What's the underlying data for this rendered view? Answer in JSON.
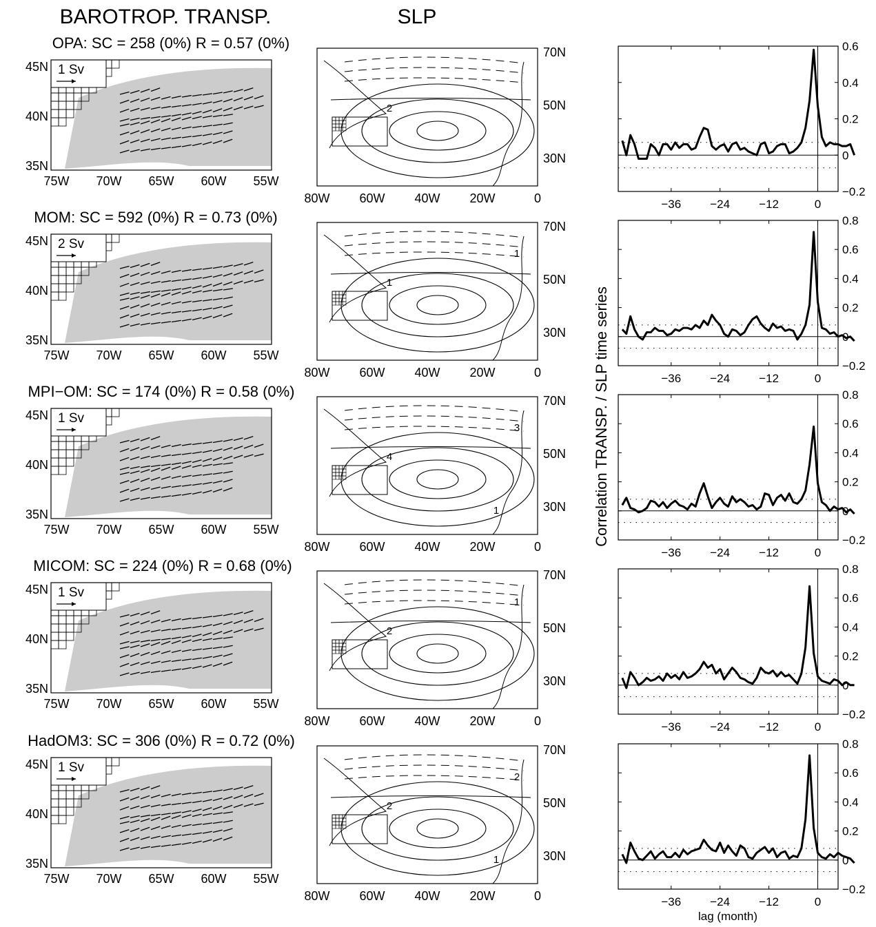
{
  "headers": {
    "left": "BAROTROP. TRANSP.",
    "middle": "SLP"
  },
  "right_axis": {
    "ylabel": "Correlation TRANSP. / SLP time series",
    "xlabel": "lag (month)"
  },
  "colors": {
    "shade": "#cccccc",
    "line": "#000000"
  },
  "map_axes": {
    "left_x_ticks": [
      "75W",
      "70W",
      "65W",
      "60W",
      "55W"
    ],
    "left_y_ticks": [
      "45N",
      "40N",
      "35N"
    ],
    "slp_x_ticks": [
      "80W",
      "60W",
      "40W",
      "20W",
      "0"
    ],
    "slp_y_ticks": [
      "70N",
      "50N",
      "30N"
    ]
  },
  "chart_data": [
    {
      "type": "line",
      "model": "OPA",
      "sc": "258",
      "sc_sig": "(0%)",
      "r": "0.57",
      "r_sig": "(0%)",
      "vector_scale": "1 Sv",
      "slp_contour_labels": [
        "2"
      ],
      "xlabel": "",
      "ylabel": "Correlation TRANSP. / SLP time series",
      "xlim": [
        -49,
        5
      ],
      "ylim": [
        -0.2,
        0.6
      ],
      "x_ticks": [
        -36,
        -24,
        -12,
        0
      ],
      "y_ticks": [
        -0.2,
        0,
        0.2,
        0.4,
        0.6
      ],
      "y_tick_labels": [
        "−0.2",
        "0",
        "0.2",
        "0.4",
        "0.6"
      ],
      "x_tick_labels": [
        "−36",
        "−24",
        "−12",
        "0"
      ],
      "significance": 0.07,
      "series": [
        {
          "x": [
            -48,
            -47,
            -46,
            -45,
            -44,
            -43,
            -42,
            -41,
            -40,
            -39,
            -38,
            -37,
            -36,
            -35,
            -34,
            -33,
            -32,
            -31,
            -30,
            -29,
            -28,
            -27,
            -26,
            -25,
            -24,
            -23,
            -22,
            -21,
            -20,
            -19,
            -18,
            -17,
            -16,
            -15,
            -14,
            -13,
            -12,
            -11,
            -10,
            -9,
            -8,
            -7,
            -6,
            -5,
            -4,
            -3,
            -2,
            -1,
            0,
            1,
            2,
            3,
            4,
            5,
            6,
            7,
            8,
            9
          ],
          "y": [
            0.08,
            0.0,
            0.11,
            0.06,
            -0.02,
            -0.02,
            -0.02,
            0.06,
            0.04,
            0.0,
            0.06,
            0.06,
            0.03,
            0.07,
            0.04,
            0.06,
            0.06,
            0.03,
            0.04,
            0.1,
            0.15,
            0.14,
            0.05,
            0.03,
            0.05,
            0.06,
            0.02,
            0.06,
            0.07,
            0.03,
            0.04,
            0.02,
            0.01,
            0.0,
            0.06,
            0.07,
            0.01,
            0.02,
            0.05,
            0.06,
            0.06,
            0.01,
            0.02,
            0.04,
            0.07,
            0.15,
            0.3,
            0.58,
            0.27,
            0.1,
            0.05,
            0.07,
            0.06,
            0.06,
            0.05,
            0.05,
            0.06,
            0.0
          ]
        }
      ]
    },
    {
      "type": "line",
      "model": "MOM",
      "sc": "592",
      "sc_sig": "(0%)",
      "r": "0.73",
      "r_sig": "(0%)",
      "vector_scale": "2 Sv",
      "slp_contour_labels": [
        "1",
        "1"
      ],
      "xlabel": "",
      "ylabel": "Correlation TRANSP. / SLP time series",
      "xlim": [
        -49,
        5
      ],
      "ylim": [
        -0.2,
        0.8
      ],
      "x_ticks": [
        -36,
        -24,
        -12,
        0
      ],
      "y_ticks": [
        -0.2,
        0,
        0.2,
        0.4,
        0.6,
        0.8
      ],
      "y_tick_labels": [
        "−0.2",
        "0",
        "0.2",
        "0.4",
        "0.6",
        "0.8"
      ],
      "x_tick_labels": [
        "−36",
        "−24",
        "−12",
        "0"
      ],
      "significance": 0.08,
      "series": [
        {
          "x": [
            -48,
            -47,
            -46,
            -45,
            -44,
            -43,
            -42,
            -41,
            -40,
            -39,
            -38,
            -37,
            -36,
            -35,
            -34,
            -33,
            -32,
            -31,
            -30,
            -29,
            -28,
            -27,
            -26,
            -25,
            -24,
            -23,
            -22,
            -21,
            -20,
            -19,
            -18,
            -17,
            -16,
            -15,
            -14,
            -13,
            -12,
            -11,
            -10,
            -9,
            -8,
            -7,
            -6,
            -5,
            -4,
            -3,
            -2,
            -1,
            0,
            1,
            2,
            3,
            4,
            5,
            6,
            7,
            8,
            9
          ],
          "y": [
            0.05,
            0.02,
            0.14,
            0.05,
            0.0,
            -0.02,
            0.03,
            0.03,
            0.06,
            0.04,
            0.04,
            0.01,
            0.02,
            0.05,
            0.04,
            0.06,
            0.06,
            0.05,
            0.08,
            0.06,
            0.11,
            0.08,
            0.15,
            0.11,
            0.08,
            0.02,
            0.0,
            0.05,
            0.04,
            0.01,
            0.03,
            0.08,
            0.12,
            0.14,
            0.09,
            0.06,
            0.04,
            0.09,
            0.06,
            0.07,
            0.04,
            0.05,
            0.04,
            -0.02,
            0.02,
            0.08,
            0.22,
            0.72,
            0.24,
            0.06,
            0.05,
            0.02,
            0.03,
            0.0,
            0.01,
            -0.01,
            0.0,
            -0.03
          ]
        }
      ]
    },
    {
      "type": "line",
      "model": "MPI−OM",
      "sc": "174",
      "sc_sig": "(0%)",
      "r": "0.58",
      "r_sig": "(0%)",
      "vector_scale": "1 Sv",
      "slp_contour_labels": [
        "4",
        "3",
        "1"
      ],
      "xlabel": "",
      "ylabel": "Correlation TRANSP. / SLP time series",
      "xlim": [
        -49,
        5
      ],
      "ylim": [
        -0.2,
        0.8
      ],
      "x_ticks": [
        -36,
        -24,
        -12,
        0
      ],
      "y_ticks": [
        -0.2,
        0,
        0.2,
        0.4,
        0.6,
        0.8
      ],
      "y_tick_labels": [
        "−0.2",
        "0",
        "0.2",
        "0.4",
        "0.6",
        "0.8"
      ],
      "x_tick_labels": [
        "−36",
        "−24",
        "−12",
        "0"
      ],
      "significance": 0.08,
      "series": [
        {
          "x": [
            -48,
            -47,
            -46,
            -45,
            -44,
            -43,
            -42,
            -41,
            -40,
            -39,
            -38,
            -37,
            -36,
            -35,
            -34,
            -33,
            -32,
            -31,
            -30,
            -29,
            -28,
            -27,
            -26,
            -25,
            -24,
            -23,
            -22,
            -21,
            -20,
            -19,
            -18,
            -17,
            -16,
            -15,
            -14,
            -13,
            -12,
            -11,
            -10,
            -9,
            -8,
            -7,
            -6,
            -5,
            -4,
            -3,
            -2,
            -1,
            0,
            1,
            2,
            3,
            4,
            5,
            6,
            7,
            8,
            9
          ],
          "y": [
            0.04,
            0.09,
            0.02,
            0.01,
            -0.01,
            0.0,
            0.02,
            0.07,
            0.06,
            0.03,
            0.06,
            0.02,
            0.05,
            0.07,
            0.04,
            0.03,
            0.01,
            0.05,
            0.03,
            0.12,
            0.19,
            0.1,
            0.02,
            0.06,
            0.09,
            0.05,
            0.03,
            0.1,
            0.06,
            0.08,
            0.06,
            0.03,
            0.04,
            0.01,
            0.03,
            0.12,
            0.11,
            0.04,
            0.09,
            0.11,
            0.07,
            0.12,
            0.06,
            0.05,
            0.08,
            0.14,
            0.32,
            0.58,
            0.19,
            0.06,
            0.04,
            0.0,
            0.03,
            0.01,
            0.02,
            -0.01,
            0.01,
            -0.02
          ]
        }
      ]
    },
    {
      "type": "line",
      "model": "MICOM",
      "sc": "224",
      "sc_sig": "(0%)",
      "r": "0.68",
      "r_sig": "(0%)",
      "vector_scale": "1 Sv",
      "slp_contour_labels": [
        "2",
        "1"
      ],
      "xlabel": "",
      "ylabel": "Correlation TRANSP. / SLP time series",
      "xlim": [
        -49,
        5
      ],
      "ylim": [
        -0.2,
        0.8
      ],
      "x_ticks": [
        -36,
        -24,
        -12,
        0
      ],
      "y_ticks": [
        -0.2,
        0,
        0.2,
        0.4,
        0.6,
        0.8
      ],
      "y_tick_labels": [
        "−0.2",
        "0",
        "0.2",
        "0.4",
        "0.6",
        "0.8"
      ],
      "x_tick_labels": [
        "−36",
        "−24",
        "−12",
        "0"
      ],
      "significance": 0.08,
      "series": [
        {
          "x": [
            -48,
            -47,
            -46,
            -45,
            -44,
            -43,
            -42,
            -41,
            -40,
            -39,
            -38,
            -37,
            -36,
            -35,
            -34,
            -33,
            -32,
            -31,
            -30,
            -29,
            -28,
            -27,
            -26,
            -25,
            -24,
            -23,
            -22,
            -21,
            -20,
            -19,
            -18,
            -17,
            -16,
            -15,
            -14,
            -13,
            -12,
            -11,
            -10,
            -9,
            -8,
            -7,
            -6,
            -5,
            -4,
            -3,
            -2,
            -1,
            0,
            1,
            2,
            3,
            4,
            5,
            6,
            7,
            8,
            9
          ],
          "y": [
            0.05,
            -0.02,
            0.09,
            0.05,
            0.0,
            0.02,
            0.05,
            0.03,
            0.04,
            0.06,
            0.03,
            0.08,
            0.05,
            0.07,
            0.04,
            0.09,
            0.05,
            0.06,
            0.08,
            0.11,
            0.16,
            0.12,
            0.14,
            0.08,
            0.11,
            0.04,
            0.08,
            0.12,
            0.09,
            0.05,
            0.04,
            0.02,
            0.01,
            0.05,
            0.12,
            0.09,
            0.08,
            0.1,
            0.06,
            0.09,
            0.06,
            0.07,
            0.04,
            0.01,
            0.08,
            0.26,
            0.68,
            0.22,
            0.06,
            0.03,
            0.02,
            0.01,
            0.04,
            0.03,
            0.0,
            0.02,
            0.0,
            0.0
          ]
        }
      ]
    },
    {
      "type": "line",
      "model": "HadOM3",
      "sc": "306",
      "sc_sig": "(0%)",
      "r": "0.72",
      "r_sig": "(0%)",
      "vector_scale": "1 Sv",
      "slp_contour_labels": [
        "2",
        "2",
        "1"
      ],
      "xlabel": "lag (month)",
      "ylabel": "Correlation TRANSP. / SLP time series",
      "xlim": [
        -49,
        5
      ],
      "ylim": [
        -0.2,
        0.8
      ],
      "x_ticks": [
        -36,
        -24,
        -12,
        0
      ],
      "y_ticks": [
        -0.2,
        0,
        0.2,
        0.4,
        0.6,
        0.8
      ],
      "y_tick_labels": [
        "−0.2",
        "0",
        "0.2",
        "0.4",
        "0.6",
        "0.8"
      ],
      "x_tick_labels": [
        "−36",
        "−24",
        "−12",
        "0"
      ],
      "significance": 0.08,
      "series": [
        {
          "x": [
            -48,
            -47,
            -46,
            -45,
            -44,
            -43,
            -42,
            -41,
            -40,
            -39,
            -38,
            -37,
            -36,
            -35,
            -34,
            -33,
            -32,
            -31,
            -30,
            -29,
            -28,
            -27,
            -26,
            -25,
            -24,
            -23,
            -22,
            -21,
            -20,
            -19,
            -18,
            -17,
            -16,
            -15,
            -14,
            -13,
            -12,
            -11,
            -10,
            -9,
            -8,
            -7,
            -6,
            -5,
            -4,
            -3,
            -2,
            -1,
            0,
            1,
            2,
            3,
            4,
            5,
            6,
            7,
            8,
            9
          ],
          "y": [
            0.04,
            -0.02,
            0.12,
            0.06,
            0.01,
            0.0,
            0.03,
            0.06,
            0.01,
            0.04,
            0.06,
            0.02,
            0.02,
            0.05,
            0.02,
            0.07,
            0.04,
            0.06,
            0.07,
            0.08,
            0.14,
            0.1,
            0.07,
            0.06,
            0.12,
            0.05,
            0.1,
            0.06,
            0.03,
            0.1,
            0.08,
            0.02,
            0.01,
            0.05,
            0.07,
            0.09,
            0.05,
            0.08,
            0.02,
            0.05,
            0.06,
            0.01,
            0.03,
            0.02,
            0.08,
            0.28,
            0.72,
            0.22,
            0.05,
            0.02,
            0.01,
            0.04,
            0.02,
            0.05,
            0.03,
            0.02,
            0.01,
            -0.02
          ]
        }
      ]
    }
  ]
}
